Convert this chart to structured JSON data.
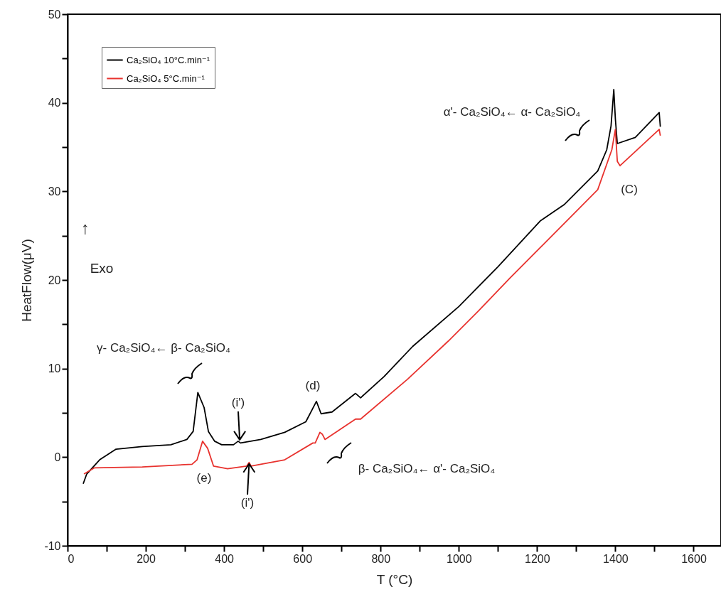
{
  "chart_data": {
    "type": "line",
    "xlabel": "T (°C)",
    "ylabel": "HeatFlow(μV)",
    "xlim": [
      0,
      1670
    ],
    "ylim": [
      -10,
      50
    ],
    "xticks": [
      0,
      {
        "value": 100,
        "label": null
      },
      200,
      {
        "value": 300,
        "label": null
      },
      400,
      {
        "value": 500,
        "label": null
      },
      600,
      {
        "value": 700,
        "label": null
      },
      800,
      {
        "value": 900,
        "label": null
      },
      1000,
      {
        "value": 1100,
        "label": null
      },
      1200,
      {
        "value": 1300,
        "label": null
      },
      1400,
      {
        "value": 1500,
        "label": null
      },
      1600
    ],
    "yticks": [
      -10,
      {
        "value": -5,
        "label": null
      },
      0,
      {
        "value": 5,
        "label": null
      },
      10,
      {
        "value": 15,
        "label": null
      },
      20,
      {
        "value": 25,
        "label": null
      },
      30,
      {
        "value": 35,
        "label": null
      },
      40,
      {
        "value": 45,
        "label": null
      },
      50
    ],
    "grid": false,
    "legend": "top left",
    "marker": "none",
    "series": [
      {
        "name": "Ca₂SiO₄ 10°C.min⁻¹",
        "color": "#000000",
        "x": [
          40,
          49,
          82,
          124,
          191,
          264,
          305,
          321,
          333,
          349,
          360,
          376,
          394,
          424,
          436,
          442,
          494,
          555,
          609,
          636,
          648,
          676,
          736,
          749,
          809,
          882,
          1000,
          1100,
          1209,
          1269,
          1355,
          1378,
          1389,
          1396,
          1400,
          1405,
          1451,
          1512,
          1515
        ],
        "values": [
          -3.0,
          -1.9,
          -0.3,
          0.9,
          1.2,
          1.4,
          2.0,
          2.9,
          7.3,
          5.6,
          2.9,
          1.8,
          1.4,
          1.4,
          1.8,
          1.6,
          2.0,
          2.8,
          4.0,
          6.3,
          4.9,
          5.1,
          7.2,
          6.7,
          9.1,
          12.5,
          17.0,
          21.5,
          26.7,
          28.5,
          32.3,
          34.7,
          37.4,
          41.5,
          38.2,
          35.4,
          36.1,
          38.9,
          37.3
        ]
      },
      {
        "name": "Ca₂SiO₄ 5°C.min⁻¹",
        "color": "#e8322e",
        "x": [
          42,
          69,
          191,
          318,
          331,
          345,
          358,
          373,
          409,
          458,
          464,
          469,
          555,
          627,
          633,
          645,
          651,
          658,
          736,
          749,
          869,
          973,
          1050,
          1130,
          1209,
          1355,
          1391,
          1400,
          1405,
          1412,
          1512,
          1515
        ],
        "values": [
          -1.9,
          -1.2,
          -1.1,
          -0.8,
          -0.3,
          1.8,
          1.0,
          -1.0,
          -1.3,
          -1.0,
          -0.6,
          -1.0,
          -0.3,
          1.6,
          1.6,
          2.8,
          2.6,
          2.0,
          4.3,
          4.3,
          8.8,
          13.1,
          16.5,
          20.2,
          23.7,
          30.2,
          34.7,
          37.0,
          33.4,
          32.9,
          37.0,
          36.3
        ]
      }
    ],
    "annotations": [
      "γ- Ca₂SiO₄← β- Ca₂SiO₄",
      "β- Ca₂SiO₄← α'- Ca₂SiO₄",
      "α'- Ca₂SiO₄← α- Ca₂SiO₄",
      "(d)",
      {
        "text": "(i')",
        "x": 440,
        "y": 1.8
      },
      {
        "text": "(i')",
        "x": 464,
        "y": -0.6
      },
      "(e)",
      "(C)",
      "↑",
      "Exo"
    ]
  }
}
